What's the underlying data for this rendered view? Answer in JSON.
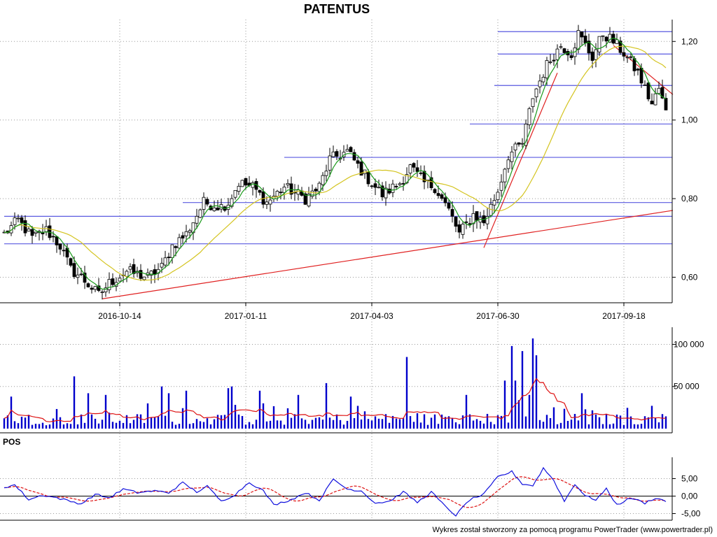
{
  "chart_data": {
    "title": "PATENTUS",
    "footer": "Wykres został stworzony za pomocą programu PowerTrader (www.powertrader.pl)",
    "colors": {
      "candle": "#000000",
      "sma_short": "#1a9a1a",
      "sma_long": "#d4c420",
      "trendline": "#e02020",
      "level": "#5a5ae0",
      "volume": "#0000cc",
      "volume_avg": "#dd1111",
      "osc_main": "#1010dd",
      "osc_signal": "#dd1111"
    },
    "grid": true,
    "price_panel": {
      "type": "candlestick",
      "y_ticks": [
        "0,60",
        "0,80",
        "1,00",
        "1,20"
      ],
      "y_tick_values": [
        0.6,
        0.8,
        1.0,
        1.2
      ],
      "ylim": [
        0.535,
        1.245
      ],
      "x_ticks": [
        "2016-10-14",
        "2017-01-11",
        "2017-04-03",
        "2017-06-30",
        "2017-09-18"
      ],
      "x_tick_index": [
        33,
        69,
        105,
        141,
        177
      ],
      "bar_count": 190,
      "keypoints": [
        [
          0,
          0.71
        ],
        [
          4,
          0.745
        ],
        [
          8,
          0.7
        ],
        [
          12,
          0.72
        ],
        [
          16,
          0.68
        ],
        [
          19,
          0.62
        ],
        [
          22,
          0.6
        ],
        [
          27,
          0.555
        ],
        [
          30,
          0.585
        ],
        [
          35,
          0.615
        ],
        [
          41,
          0.6
        ],
        [
          45,
          0.625
        ],
        [
          48,
          0.68
        ],
        [
          52,
          0.71
        ],
        [
          57,
          0.79
        ],
        [
          62,
          0.78
        ],
        [
          64,
          0.79
        ],
        [
          67,
          0.84
        ],
        [
          71,
          0.83
        ],
        [
          75,
          0.79
        ],
        [
          80,
          0.83
        ],
        [
          86,
          0.8
        ],
        [
          90,
          0.83
        ],
        [
          93,
          0.9
        ],
        [
          98,
          0.92
        ],
        [
          103,
          0.86
        ],
        [
          108,
          0.81
        ],
        [
          113,
          0.84
        ],
        [
          116,
          0.88
        ],
        [
          120,
          0.84
        ],
        [
          123,
          0.83
        ],
        [
          127,
          0.77
        ],
        [
          130,
          0.71
        ],
        [
          134,
          0.76
        ],
        [
          137,
          0.74
        ],
        [
          141,
          0.82
        ],
        [
          144,
          0.91
        ],
        [
          148,
          0.94
        ],
        [
          151,
          1.06
        ],
        [
          155,
          1.14
        ],
        [
          159,
          1.19
        ],
        [
          162,
          1.17
        ],
        [
          164,
          1.22
        ],
        [
          168,
          1.16
        ],
        [
          171,
          1.22
        ],
        [
          174,
          1.2
        ],
        [
          177,
          1.17
        ],
        [
          181,
          1.12
        ],
        [
          185,
          1.04
        ],
        [
          187,
          1.08
        ],
        [
          189,
          1.02
        ]
      ],
      "sma_short_period": 5,
      "sma_long_period": 20,
      "horizontal_levels": [
        0.685,
        0.755,
        0.79,
        0.905,
        0.99,
        1.088,
        1.168,
        1.225
      ],
      "level_starts": [
        0,
        0,
        51,
        80,
        133,
        140,
        141,
        141
      ],
      "trendlines": [
        {
          "from": [
            28,
            0.545
          ],
          "to": [
            191,
            0.77
          ]
        },
        {
          "from": [
            137,
            0.675
          ],
          "to": [
            158,
            1.12
          ]
        },
        {
          "from": [
            174,
            1.19
          ],
          "to": [
            191,
            1.065
          ]
        }
      ]
    },
    "volume_panel": {
      "type": "bar",
      "y_ticks": [
        "50 000",
        "100 000"
      ],
      "y_tick_values": [
        50000,
        100000
      ],
      "ylim": [
        0,
        112000
      ],
      "spikes": [
        [
          2,
          38000
        ],
        [
          20,
          62000
        ],
        [
          24,
          42000
        ],
        [
          29,
          40000
        ],
        [
          45,
          50000
        ],
        [
          47,
          42000
        ],
        [
          52,
          45000
        ],
        [
          64,
          48000
        ],
        [
          65,
          50000
        ],
        [
          73,
          45000
        ],
        [
          84,
          40000
        ],
        [
          92,
          54000
        ],
        [
          99,
          38000
        ],
        [
          115,
          85000
        ],
        [
          132,
          40000
        ],
        [
          143,
          57000
        ],
        [
          145,
          98000
        ],
        [
          146,
          57000
        ],
        [
          148,
          92000
        ],
        [
          150,
          40000
        ],
        [
          151,
          107000
        ],
        [
          152,
          87000
        ],
        [
          165,
          42000
        ]
      ],
      "avg_period": 10
    },
    "oscillator_panel": {
      "name": "POS",
      "type": "line",
      "y_ticks": [
        "-5,00",
        "0,00",
        "5,00"
      ],
      "y_tick_values": [
        -5,
        0,
        5
      ],
      "ylim": [
        -6.5,
        9.5
      ],
      "keypoints": [
        [
          0,
          2.5
        ],
        [
          3,
          3.2
        ],
        [
          7,
          -1
        ],
        [
          11,
          0.3
        ],
        [
          15,
          -0.5
        ],
        [
          19,
          -1.5
        ],
        [
          22,
          -2.2
        ],
        [
          26,
          0.5
        ],
        [
          30,
          -0.5
        ],
        [
          34,
          2
        ],
        [
          38,
          1
        ],
        [
          43,
          1.5
        ],
        [
          47,
          1
        ],
        [
          51,
          3.8
        ],
        [
          55,
          1.2
        ],
        [
          58,
          2.8
        ],
        [
          62,
          -1.5
        ],
        [
          66,
          0.5
        ],
        [
          70,
          4
        ],
        [
          74,
          1.5
        ],
        [
          77,
          -2.5
        ],
        [
          82,
          -1
        ],
        [
          86,
          1
        ],
        [
          90,
          -1.2
        ],
        [
          94,
          4.8
        ],
        [
          98,
          2
        ],
        [
          102,
          1.5
        ],
        [
          106,
          -2
        ],
        [
          110,
          -1.5
        ],
        [
          114,
          1.2
        ],
        [
          118,
          -1.8
        ],
        [
          122,
          1.2
        ],
        [
          126,
          -3
        ],
        [
          129,
          -5.5
        ],
        [
          133,
          -1
        ],
        [
          137,
          0.5
        ],
        [
          141,
          5.5
        ],
        [
          145,
          7
        ],
        [
          148,
          3.5
        ],
        [
          151,
          3
        ],
        [
          154,
          8
        ],
        [
          157,
          4.5
        ],
        [
          160,
          -1.5
        ],
        [
          163,
          3.5
        ],
        [
          166,
          0
        ],
        [
          169,
          -1
        ],
        [
          172,
          2
        ],
        [
          175,
          -2.5
        ],
        [
          179,
          -0.5
        ],
        [
          183,
          -2
        ],
        [
          186,
          -0.5
        ],
        [
          189,
          -1.5
        ]
      ],
      "signal_period": 9
    }
  }
}
